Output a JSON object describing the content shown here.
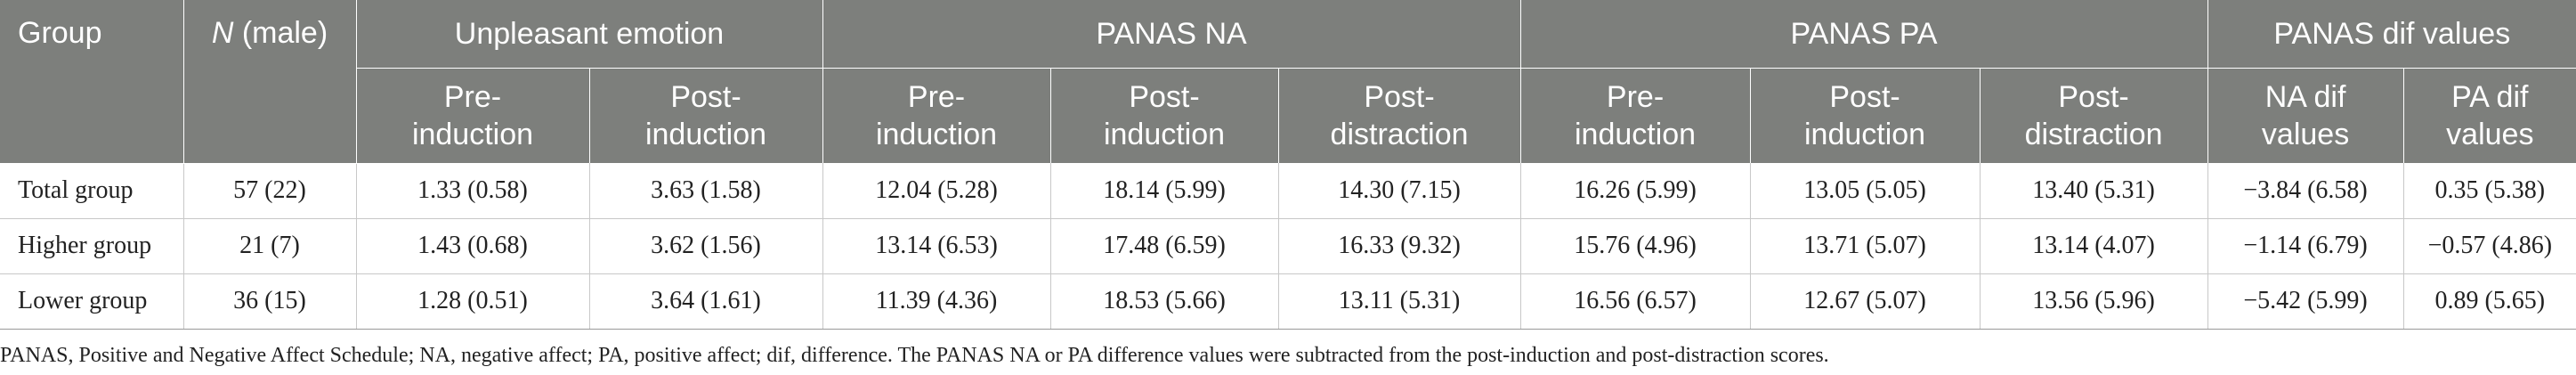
{
  "header": {
    "group": "Group",
    "n_italic": "N",
    "n_rest": " (male)",
    "unpleasant": "Unpleasant emotion",
    "panas_na": "PANAS NA",
    "panas_pa": "PANAS PA",
    "panas_dif": "PANAS dif values",
    "sub": [
      [
        "Pre-",
        "induction"
      ],
      [
        "Post-",
        "induction"
      ],
      [
        "Pre-",
        "induction"
      ],
      [
        "Post-",
        "induction"
      ],
      [
        "Post-",
        "distraction"
      ],
      [
        "Pre-",
        "induction"
      ],
      [
        "Post-",
        "induction"
      ],
      [
        "Post-",
        "distraction"
      ],
      [
        "NA dif",
        "values"
      ],
      [
        "PA dif",
        "values"
      ]
    ]
  },
  "rows": [
    [
      "Total group",
      "57 (22)",
      "1.33 (0.58)",
      "3.63 (1.58)",
      "12.04 (5.28)",
      "18.14 (5.99)",
      "14.30 (7.15)",
      "16.26 (5.99)",
      "13.05 (5.05)",
      "13.40 (5.31)",
      "−3.84 (6.58)",
      "0.35 (5.38)"
    ],
    [
      "Higher group",
      "21 (7)",
      "1.43 (0.68)",
      "3.62 (1.56)",
      "13.14 (6.53)",
      "17.48 (6.59)",
      "16.33 (9.32)",
      "15.76 (4.96)",
      "13.71 (5.07)",
      "13.14 (4.07)",
      "−1.14 (6.79)",
      "−0.57 (4.86)"
    ],
    [
      "Lower group",
      "36 (15)",
      "1.28 (0.51)",
      "3.64 (1.61)",
      "11.39 (4.36)",
      "18.53 (5.66)",
      "13.11 (5.31)",
      "16.56 (6.57)",
      "12.67 (5.07)",
      "13.56 (5.96)",
      "−5.42 (5.99)",
      "0.89 (5.65)"
    ]
  ],
  "note": "PANAS, Positive and Negative Affect Schedule; NA, negative affect; PA, positive affect; dif, difference. The PANAS NA or PA difference values were subtracted from the post-induction and post-distraction scores."
}
